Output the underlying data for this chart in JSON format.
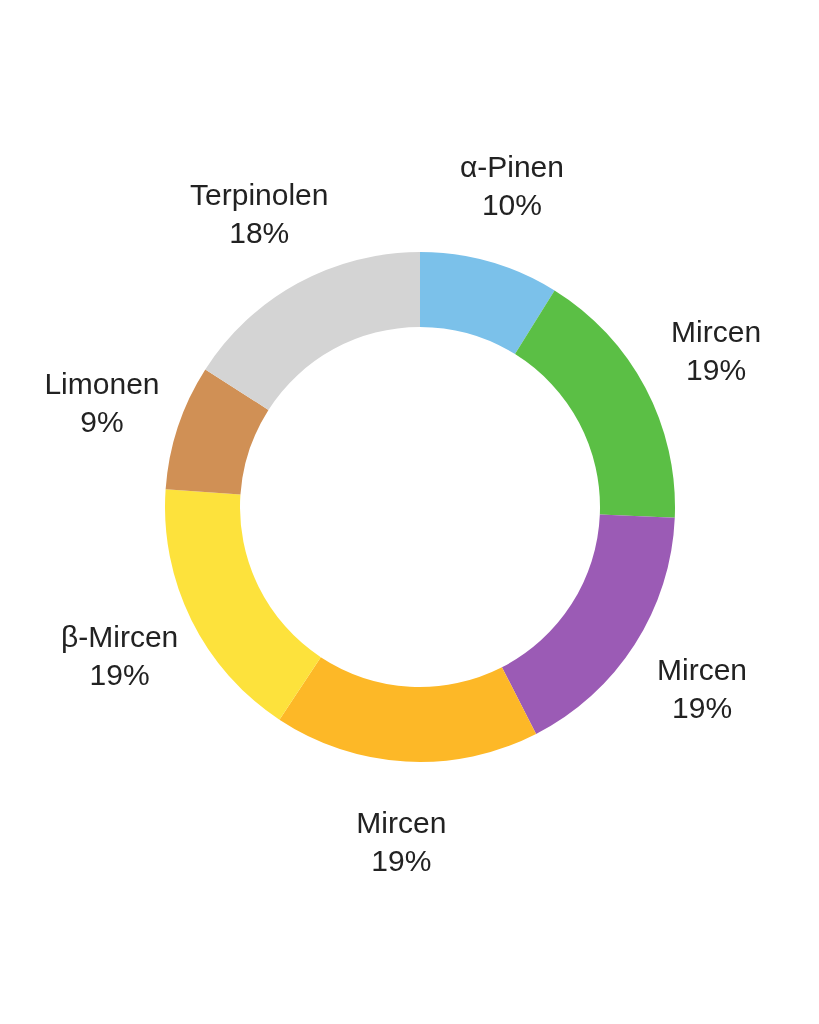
{
  "chart_data": {
    "type": "donut",
    "categories": [
      "α-Pinen",
      "Mircen",
      "Mircen",
      "Mircen",
      "β-Mircen",
      "Limonen",
      "Terpinolen"
    ],
    "values": [
      10,
      19,
      19,
      19,
      19,
      9,
      18
    ],
    "value_labels": [
      "10%",
      "19%",
      "19%",
      "19%",
      "19%",
      "9%",
      "18%"
    ],
    "colors": [
      "#7bc1ea",
      "#5bbf45",
      "#9b5bb5",
      "#fdb827",
      "#fde23c",
      "#d09055",
      "#d4d4d4"
    ]
  }
}
